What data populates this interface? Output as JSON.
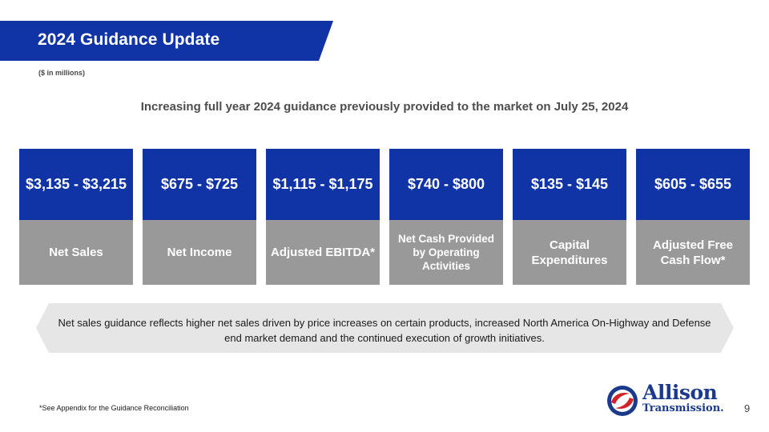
{
  "header": {
    "title": "2024 Guidance Update",
    "units_note": "($ in millions)"
  },
  "headline": "Increasing full year 2024 guidance previously provided to the market on July 25, 2024",
  "metrics": [
    {
      "value": "$3,135 - $3,215",
      "label": "Net Sales"
    },
    {
      "value": "$675 - $725",
      "label": "Net Income"
    },
    {
      "value": "$1,115 - $1,175",
      "label": "Adjusted EBITDA*"
    },
    {
      "value": "$740 - $800",
      "label": "Net Cash Provided by Operating Activities"
    },
    {
      "value": "$135 - $145",
      "label": "Capital Expenditures"
    },
    {
      "value": "$605 - $655",
      "label": "Adjusted Free Cash Flow*"
    }
  ],
  "callout": "Net sales guidance reflects higher net sales driven by price increases on certain products, increased North America On-Highway and Defense end market demand and the continued execution of growth initiatives.",
  "footnote": "*See Appendix for the Guidance Reconciliation",
  "logo": {
    "line1": "Allison",
    "line2": "Transmission."
  },
  "page_number": "9",
  "colors": {
    "brand_blue": "#1034a6",
    "label_gray": "#999999",
    "callout_gray": "#e6e6e6",
    "logo_red": "#d2232a"
  }
}
